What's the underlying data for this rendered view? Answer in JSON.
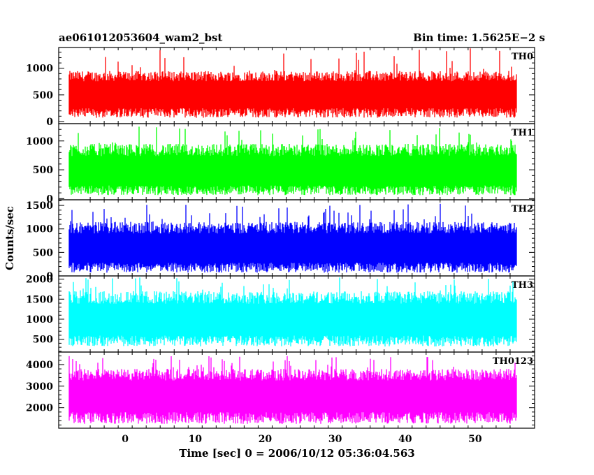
{
  "chart_data": {
    "type": "line",
    "title": "ae061012053604_wam2_bst",
    "bin_time_label": "Bin time: 1.5625E−2 s",
    "xlabel": "Time [sec] 0 = 2006/10/12 05:36:04.563",
    "ylabel": "Counts/sec",
    "xlim": [
      -9.5,
      58.5
    ],
    "data_x_range": [
      -8,
      56
    ],
    "x_ticks": [
      0,
      10,
      20,
      30,
      40,
      50
    ],
    "x_tick_labels": [
      "0",
      "10",
      "20",
      "30",
      "40",
      "50"
    ],
    "grid": false,
    "panels": [
      {
        "name": "TH0",
        "color": "#ff0000",
        "ylim": [
          -40,
          1390
        ],
        "ticks": [
          0,
          500,
          1000
        ],
        "tick_labels": [
          "0",
          "500",
          "1000"
        ],
        "mean": 520,
        "low": 70,
        "typical_high": 950,
        "peak": 1380
      },
      {
        "name": "TH1",
        "color": "#00ff00",
        "ylim": [
          -20,
          1300
        ],
        "ticks": [
          0,
          500,
          1000
        ],
        "tick_labels": [
          "0",
          "500",
          "1000"
        ],
        "mean": 480,
        "low": 60,
        "typical_high": 950,
        "peak": 1250
      },
      {
        "name": "TH2",
        "color": "#0000ff",
        "ylim": [
          0,
          1620
        ],
        "ticks": [
          0,
          500,
          1000,
          1500
        ],
        "tick_labels": [
          "0",
          "500",
          "1000",
          "1500"
        ],
        "mean": 600,
        "low": 70,
        "typical_high": 1150,
        "peak": 1550
      },
      {
        "name": "TH3",
        "color": "#00ffff",
        "ylim": [
          180,
          2080
        ],
        "ticks": [
          500,
          1000,
          1500,
          2000
        ],
        "tick_labels": [
          "500",
          "1000",
          "1500",
          "2000"
        ],
        "mean": 1000,
        "low": 320,
        "typical_high": 1700,
        "peak": 2050
      },
      {
        "name": "TH0123",
        "color": "#ff00ff",
        "ylim": [
          1050,
          4580
        ],
        "ticks": [
          2000,
          3000,
          4000
        ],
        "tick_labels": [
          "2000",
          "3000",
          "4000"
        ],
        "mean": 2600,
        "low": 1250,
        "typical_high": 3800,
        "peak": 4400
      }
    ]
  }
}
